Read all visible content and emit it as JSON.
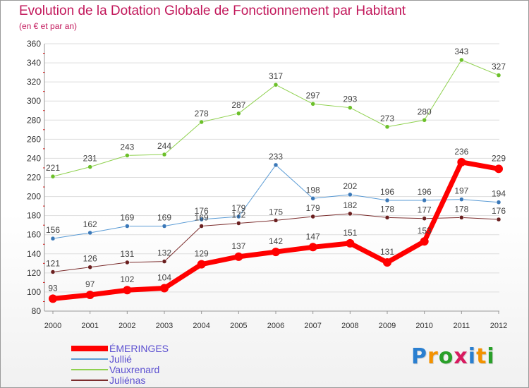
{
  "header": {
    "title": "Evolution de la Dotation Globale de Fonctionnement par Habitant",
    "subtitle": "(en € et par an)"
  },
  "logo": {
    "letters": [
      "P",
      "r",
      "o",
      "x",
      "i",
      "t",
      "i"
    ]
  },
  "colors": {
    "title": "#c2185b",
    "grid": "#dddddd",
    "tick_red": "#e00000",
    "logo": [
      "#2a7fd0",
      "#f39200",
      "#2aa02a",
      "#d81b60",
      "#2a7fd0",
      "#f39200",
      "#2aa02a"
    ]
  },
  "chart_data": {
    "type": "line",
    "title": "Evolution de la Dotation Globale de Fonctionnement par Habitant",
    "subtitle": "(en € et par an)",
    "x": [
      "2000",
      "2001",
      "2002",
      "2003",
      "2004",
      "2005",
      "2006",
      "2007",
      "2008",
      "2009",
      "2010",
      "2011",
      "2012"
    ],
    "ylim": [
      80,
      360
    ],
    "yticks": [
      80,
      100,
      120,
      140,
      160,
      180,
      200,
      220,
      240,
      260,
      280,
      300,
      320,
      340,
      360
    ],
    "grid": "horizontal",
    "legend": "bottom-left",
    "series": [
      {
        "name": "Vauxrenard",
        "color": "#8fd14f",
        "marker": "#6cc02a",
        "width": 1,
        "values": [
          221,
          231,
          243,
          244,
          278,
          287,
          317,
          297,
          293,
          273,
          280,
          343,
          327
        ]
      },
      {
        "name": "Jullié",
        "color": "#5a9bd5",
        "marker": "#3a78b8",
        "width": 1,
        "values": [
          156,
          162,
          169,
          169,
          176,
          179,
          233,
          198,
          202,
          196,
          196,
          197,
          194
        ]
      },
      {
        "name": "Juliénas",
        "color": "#7b2d2d",
        "marker": "#6a1f1f",
        "width": 1,
        "values": [
          121,
          126,
          131,
          132,
          169,
          172,
          175,
          179,
          182,
          178,
          177,
          178,
          176
        ]
      },
      {
        "name": "ÉMERINGES",
        "color": "#ff0000",
        "marker": "#ff0000",
        "width": 7,
        "values": [
          93,
          97,
          102,
          104,
          129,
          137,
          142,
          147,
          151,
          131,
          153,
          236,
          229
        ]
      }
    ],
    "legend_entries": [
      "ÉMERINGES",
      "Jullié",
      "Vauxrenard",
      "Juliénas"
    ]
  }
}
